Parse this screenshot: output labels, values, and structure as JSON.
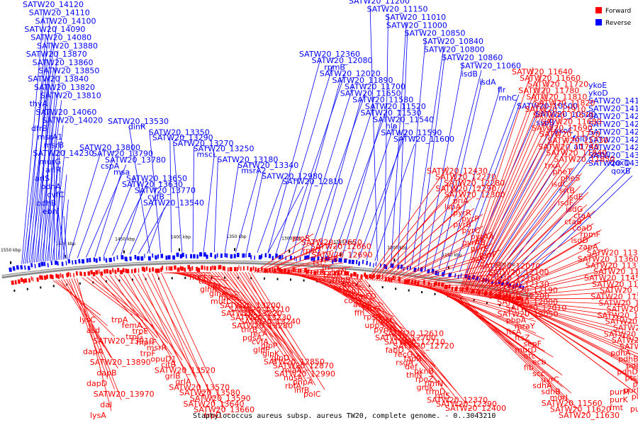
{
  "caption": "Staphylococcus aureus subsp. aureus TW20, complete genome. - 0..3043210",
  "legend": [
    {
      "label": "Forward",
      "color": "#ff0000"
    },
    {
      "label": "Reverse",
      "color": "#0000ff"
    }
  ],
  "colors": {
    "forward": "#ff0000",
    "reverse": "#0000ff",
    "backbone": "#8a8a8a"
  },
  "ticks": [
    "1550 kbp",
    "1500 kbp",
    "1450 kbp",
    "1400 kbp",
    "1350 kbp",
    "1300 kbp",
    "1250 kbp",
    "1200 kbp",
    "1150 kbp",
    "1100 kbp"
  ],
  "reverse_labels": [
    "SATW20_14120",
    "SATW20_14110",
    "SATW20_14100",
    "SATW20_14090",
    "SATW20_14080",
    "SATW20_13880",
    "SATW20_13870",
    "SATW20_13860",
    "SATW20_13850",
    "SATW20_13840",
    "SATW20_13820",
    "SATW20_13810",
    "thyA",
    "SATW20_14060",
    "SATW20_14020",
    "dfrB",
    "msrA1",
    "msrB",
    "SATW20_14230",
    "murG",
    "arlR",
    "arlS",
    "odhA",
    "cvfC",
    "odhB",
    "ebh",
    "SATW20_13800",
    "SATW20_13790",
    "SATW20_13780",
    "cspA",
    "msa",
    "SATW20_13650",
    "SATW20_13630",
    "SATW20_13770",
    "cvfB",
    "SATW20_13540",
    "SATW20_13530",
    "dinR",
    "SATW20_13350",
    "SATW20_13290",
    "SATW20_13270",
    "SATW20_13250",
    "mscL",
    "SATW20_13180",
    "SATW20_13340",
    "msrA2",
    "SATW20_12980",
    "SATW20_12810",
    "SATW20_12360",
    "SATW20_12080",
    "rpmB",
    "SATW20_12020",
    "SATW20_11890",
    "SATW20_11700",
    "SATW20_11650",
    "SATW20_11580",
    "SATW20_11520",
    "SATW20_11530",
    "SATW20_11540",
    "hla",
    "SATW20_11590",
    "SATW20_11600",
    "SATW20_11200",
    "SATW20_11150",
    "SATW20_11010",
    "SATW20_11000",
    "SATW20_10850",
    "SATW20_10840",
    "SATW20_10800",
    "SATW20_10860",
    "SATW20_11060",
    "isdB",
    "isdA",
    "flr",
    "rnhC",
    "SATW20_10500",
    "SATW20_10520",
    "sspB",
    "ykoC",
    "folD",
    "atl",
    "sspC",
    "qoxD",
    "qoxB",
    "ykoE",
    "ykoD",
    "SATW20_14170",
    "SATW20_14180",
    "SATW20_14290",
    "SATW20_14200",
    "SATW20_14220",
    "SATW20_14210",
    "SATW20_14260",
    "SATW20_14310",
    "SATW20_14320"
  ],
  "forward_labels": [
    "lysC",
    "asd",
    "SATW20_13910",
    "dapA",
    "SATW20_13890",
    "dapB",
    "dapD",
    "SATW20_13970",
    "dal",
    "lysA",
    "trpA",
    "femA",
    "trpE",
    "trpG",
    "mprF",
    "msrR",
    "trpF",
    "opuD1",
    "citB",
    "SATW20_13520",
    "grlB",
    "grlA",
    "SATW20_13570",
    "SATW20_13580",
    "SATW20_13590",
    "SATW20_13640",
    "SATW20_13660",
    "trpD",
    "nucI",
    "thrC",
    "hfq",
    "glnR",
    "glnA",
    "mutS",
    "mutL",
    "SATW20_13200",
    "SATW20_13210",
    "SATW20_13220",
    "SATW20_13230",
    "SATW20_13240",
    "SATW20_13280",
    "thrB",
    "recA",
    "pgsA",
    "cvfA",
    "glpP",
    "glpF",
    "glpK",
    "glpD",
    "SATW20_12850",
    "SATW20_12870",
    "miaA",
    "SATW20_12990",
    "nusA",
    "pnpA",
    "rbfA",
    "infB",
    "polC",
    "proS",
    "SATW20_12650",
    "SATW20_12660",
    "rpsO",
    "SATW20_12690",
    "rpsB",
    "tsf",
    "frr",
    "lytN",
    "topA",
    "rnhB",
    "fmhC",
    "hslV",
    "hslU",
    "trmFO",
    "codY",
    "acpP",
    "fabG",
    "ffh",
    "rpsP",
    "rimM",
    "uppS",
    "pyrH",
    "SATW20_12610",
    "SATW20_12700",
    "SATW20_12710",
    "SATW20_12720",
    "fabD",
    "recG",
    "fapR",
    "rsgA",
    "def",
    "pknB",
    "thiN",
    "rpoZ",
    "rlmN",
    "gmk",
    "trmD",
    "rplS",
    "SATW20_12370",
    "SATW20_12390",
    "SATW20_12400",
    "SATW20_12430",
    "SATW20_12270",
    "SATW20_12280",
    "SATW20_12290",
    "SATW20_12300",
    "priA",
    "lspA",
    "pyrR",
    "pyrP",
    "pyrB",
    "pyrC",
    "pyrAA",
    "pyrAB",
    "pyrE",
    "pyrF",
    "ileS",
    "SATW20_12070",
    "SATW20_12100",
    "SATW20_12160",
    "SATW20_12130",
    "SATW20_12190",
    "SATW20_12200",
    "SATW20_12000",
    "SATW20_12010",
    "SATW20_12050",
    "pbpA",
    "mraY",
    "ftsA",
    "ftsZ",
    "sepF",
    "murD",
    "otc",
    "ecb",
    "fib",
    "scc",
    "uvrC",
    "sdhA",
    "sdhB",
    "murI",
    "SATW20_11560",
    "SATW20_11620",
    "SATW20_11630",
    "SATW20_11640",
    "SATW20_11660",
    "SATW20_11720",
    "SATW20_11780",
    "SATW20_11810",
    "SATW20_11820",
    "SATW20_11910",
    "SATW20_11670",
    "SATW20_11680",
    "SATW20_11690",
    "SATW20_11710",
    "SATW20_11730",
    "SATW20_11740",
    "SATW20_11840",
    "SATW20_11850",
    "trxA",
    "pheT",
    "pheS",
    "isdC",
    "srtB",
    "isdE",
    "isdF",
    "isdG",
    "ctaA",
    "ctaB",
    "coaD",
    "rpmF",
    "isdD",
    "zapA",
    "SATW20_11310",
    "SATW20_11360",
    "SATW20_11370",
    "SATW20_11380",
    "SATW20_11450",
    "SATW20_11460",
    "SATW20_11490",
    "SATW20_11570",
    "SATW20_11210",
    "SATW20_11140",
    "SATW20_11120",
    "SATW20_11090",
    "SATW20_11050",
    "SATW20_11020",
    "SATW20_10980",
    "SATW20_10940",
    "pdhA",
    "pdhB",
    "pdhC",
    "pdhD",
    "ptsH",
    "ptsI",
    "purL",
    "purF",
    "purD",
    "purE",
    "purC",
    "purM",
    "purK",
    "fmt"
  ]
}
